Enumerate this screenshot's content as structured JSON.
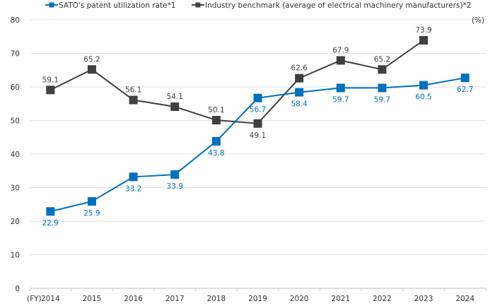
{
  "chart_data": {
    "type": "line",
    "categories": [
      "2014",
      "2015",
      "2016",
      "2017",
      "2018",
      "2019",
      "2020",
      "2021",
      "2022",
      "2023",
      "2024"
    ],
    "x_unit_label": "(FY)",
    "y_unit_label": "(%)",
    "ylim": [
      0,
      80
    ],
    "yticks": [
      0,
      10,
      20,
      30,
      40,
      50,
      60,
      70,
      80
    ],
    "grid": true,
    "legend_position": "top",
    "series": [
      {
        "name": "SATO's patent utilization rate*1",
        "color": "#0070c0",
        "values": [
          22.9,
          25.9,
          33.2,
          33.9,
          43.8,
          56.7,
          58.4,
          59.7,
          59.7,
          60.5,
          62.7
        ]
      },
      {
        "name": "Industry benchmark (average of electrical machinery manufacturers)*2",
        "color": "#404040",
        "values": [
          59.1,
          65.2,
          56.1,
          54.1,
          50.1,
          49.1,
          62.6,
          67.9,
          65.2,
          73.9,
          null
        ]
      }
    ]
  }
}
